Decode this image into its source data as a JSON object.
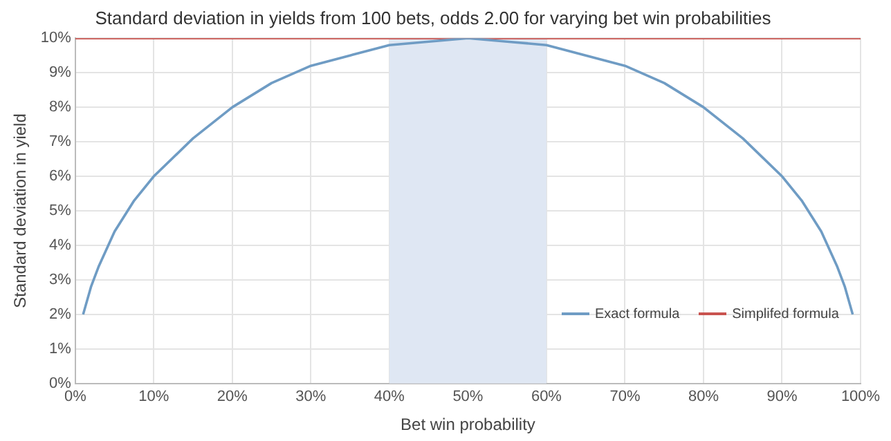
{
  "chart_data": {
    "type": "line",
    "title": "Standard deviation in yields from 100 bets, odds 2.00 for varying bet win probabilities",
    "xlabel": "Bet win probability",
    "ylabel": "Standard deviation in yield",
    "series": [
      {
        "name": "Exact formula",
        "color": "#6f9cc4",
        "x": [
          1,
          2,
          3,
          5,
          7.5,
          10,
          15,
          20,
          25,
          30,
          35,
          40,
          45,
          50,
          55,
          60,
          65,
          70,
          75,
          80,
          85,
          90,
          92.5,
          95,
          97,
          98,
          99
        ],
        "values": [
          2.0,
          2.8,
          3.4,
          4.4,
          5.3,
          6.0,
          7.1,
          8.0,
          8.7,
          9.2,
          9.5,
          9.8,
          9.9,
          10,
          9.9,
          9.8,
          9.5,
          9.2,
          8.7,
          8.0,
          7.1,
          6.0,
          5.3,
          4.4,
          3.4,
          2.8,
          2.0
        ]
      },
      {
        "name": "Simplifed formula",
        "color": "#c9534f",
        "x": [
          0,
          100
        ],
        "values": [
          10,
          10
        ]
      }
    ],
    "bands": [
      {
        "axis": "x",
        "from": 40,
        "to": 60,
        "color": "#dfe7f3"
      }
    ],
    "xlim": [
      0,
      100
    ],
    "xticks": [
      {
        "value": 0,
        "label": "0%"
      },
      {
        "value": 10,
        "label": "10%"
      },
      {
        "value": 20,
        "label": "20%"
      },
      {
        "value": 30,
        "label": "30%"
      },
      {
        "value": 40,
        "label": "40%"
      },
      {
        "value": 50,
        "label": "50%"
      },
      {
        "value": 60,
        "label": "60%"
      },
      {
        "value": 70,
        "label": "70%"
      },
      {
        "value": 80,
        "label": "80%"
      },
      {
        "value": 90,
        "label": "90%"
      },
      {
        "value": 100,
        "label": "100%"
      }
    ],
    "ylim": [
      0,
      10
    ],
    "yticks": [
      {
        "value": 0,
        "label": "0%"
      },
      {
        "value": 1,
        "label": "1%"
      },
      {
        "value": 2,
        "label": "2%"
      },
      {
        "value": 3,
        "label": "3%"
      },
      {
        "value": 4,
        "label": "4%"
      },
      {
        "value": 5,
        "label": "5%"
      },
      {
        "value": 6,
        "label": "6%"
      },
      {
        "value": 7,
        "label": "7%"
      },
      {
        "value": 8,
        "label": "8%"
      },
      {
        "value": 9,
        "label": "9%"
      },
      {
        "value": 10,
        "label": "10%"
      }
    ],
    "grid": true,
    "legend": "bottom right",
    "marker": "none",
    "line_style": "solid"
  }
}
